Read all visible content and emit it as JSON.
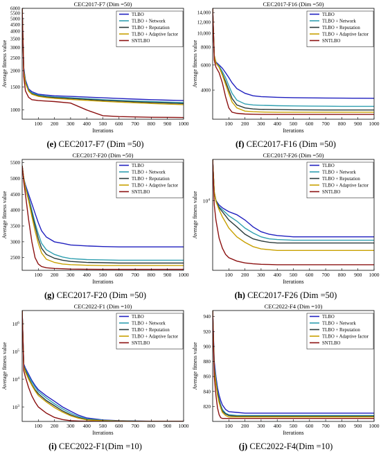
{
  "legend_entries": [
    "TLBO",
    "TLBO + Network",
    "TLBO + Reputation",
    "TLBO + Adaptive factor",
    "SNTLBO"
  ],
  "series_colors": [
    "#1f1fbf",
    "#2f9fb0",
    "#2a3a3a",
    "#c8a000",
    "#8b1010"
  ],
  "chart_data": [
    {
      "type": "line",
      "title": "CEC2017-F7 (Dim =50)",
      "caption_letter": "(e)",
      "caption_text": "CEC2017-F7 (Dim =50)",
      "xlabel": "Iterations",
      "ylabel": "Average fitness value",
      "xlim": [
        0,
        1000
      ],
      "ylim": [
        850,
        6000
      ],
      "yscale": "log",
      "xticks": [
        "100",
        "200",
        "300",
        "400",
        "500",
        "600",
        "700",
        "800",
        "900",
        "1000"
      ],
      "yticks": [
        "6000",
        "5500",
        "5000",
        "4500",
        "4000",
        "3500",
        "3000",
        "2500",
        "2000",
        "1500",
        "1000"
      ],
      "x": [
        0,
        10,
        20,
        40,
        60,
        100,
        150,
        200,
        300,
        400,
        500,
        600,
        700,
        800,
        900,
        1000
      ],
      "series": [
        {
          "name": "TLBO",
          "values": [
            6000,
            2100,
            1700,
            1450,
            1380,
            1320,
            1300,
            1285,
            1270,
            1255,
            1240,
            1225,
            1212,
            1200,
            1190,
            1180
          ]
        },
        {
          "name": "TLBO + Network",
          "values": [
            6000,
            2050,
            1650,
            1420,
            1350,
            1300,
            1275,
            1260,
            1240,
            1220,
            1200,
            1185,
            1172,
            1160,
            1150,
            1140
          ]
        },
        {
          "name": "TLBO + Reputation",
          "values": [
            6000,
            2000,
            1620,
            1400,
            1330,
            1285,
            1260,
            1245,
            1225,
            1205,
            1185,
            1170,
            1155,
            1142,
            1132,
            1120
          ]
        },
        {
          "name": "TLBO + Adaptive factor",
          "values": [
            6000,
            1980,
            1600,
            1390,
            1320,
            1270,
            1245,
            1228,
            1205,
            1185,
            1165,
            1150,
            1135,
            1122,
            1110,
            1100
          ]
        },
        {
          "name": "SNTLBO",
          "values": [
            6000,
            1800,
            1400,
            1250,
            1200,
            1180,
            1170,
            1160,
            1130,
            1000,
            905,
            890,
            885,
            880,
            878,
            875
          ]
        }
      ]
    },
    {
      "type": "line",
      "title": "CEC2017-F16 (Dim =50)",
      "caption_letter": "(f)",
      "caption_text": "CEC2017-F16 (Dim =50)",
      "xlabel": "Iterations",
      "ylabel": "Average fitness value",
      "xlim": [
        0,
        1000
      ],
      "ylim": [
        2500,
        15000
      ],
      "yscale": "log",
      "xticks": [
        "100",
        "200",
        "300",
        "400",
        "500",
        "600",
        "700",
        "800",
        "900",
        "1000"
      ],
      "yticks": [
        "14,000",
        "12,000",
        "10,000",
        "8000",
        "6000",
        "4000"
      ],
      "x": [
        0,
        10,
        20,
        40,
        60,
        80,
        100,
        120,
        150,
        200,
        250,
        300,
        400,
        500,
        600,
        700,
        800,
        900,
        1000
      ],
      "series": [
        {
          "name": "TLBO",
          "values": [
            15000,
            7000,
            6300,
            6000,
            5700,
            5300,
            4900,
            4500,
            4100,
            3800,
            3650,
            3600,
            3560,
            3540,
            3530,
            3520,
            3515,
            3510,
            3505
          ]
        },
        {
          "name": "TLBO + Network",
          "values": [
            15000,
            7000,
            6200,
            5900,
            5400,
            4900,
            4300,
            3800,
            3400,
            3200,
            3150,
            3130,
            3110,
            3100,
            3090,
            3085,
            3080,
            3080,
            3080
          ]
        },
        {
          "name": "TLBO + Reputation",
          "values": [
            15000,
            7000,
            6200,
            5800,
            5200,
            4600,
            4000,
            3500,
            3150,
            3000,
            2950,
            2930,
            2920,
            2910,
            2905,
            2900,
            2900,
            2900,
            2900
          ]
        },
        {
          "name": "TLBO + Adaptive factor",
          "values": [
            15000,
            7000,
            6200,
            5800,
            5100,
            4400,
            3800,
            3300,
            3000,
            2850,
            2820,
            2810,
            2800,
            2800,
            2800,
            2800,
            2800,
            2800,
            2800
          ]
        },
        {
          "name": "SNTLBO",
          "values": [
            15000,
            6500,
            5800,
            5300,
            4500,
            3600,
            3000,
            2800,
            2750,
            2720,
            2710,
            2700,
            2700,
            2700,
            2700,
            2700,
            2700,
            2700,
            2700
          ]
        }
      ]
    },
    {
      "type": "line",
      "title": "CEC2017-F20 (Dim =50)",
      "caption_letter": "(g)",
      "caption_text": "CEC2017-F20 (Dim =50)",
      "xlabel": "Iterations",
      "ylabel": "Average fitness value",
      "xlim": [
        0,
        1000
      ],
      "ylim": [
        2100,
        5600
      ],
      "yscale": "linear",
      "xticks": [
        "100",
        "200",
        "300",
        "400",
        "500",
        "600",
        "700",
        "800",
        "900",
        "1000"
      ],
      "yticks": [
        "5500",
        "5000",
        "4500",
        "4000",
        "3500",
        "3000",
        "2500"
      ],
      "x": [
        0,
        10,
        20,
        40,
        60,
        80,
        100,
        120,
        150,
        200,
        250,
        300,
        400,
        500,
        600,
        700,
        800,
        900,
        1000
      ],
      "series": [
        {
          "name": "TLBO",
          "values": [
            5400,
            5000,
            4800,
            4500,
            4200,
            3900,
            3600,
            3350,
            3150,
            3000,
            2950,
            2900,
            2870,
            2850,
            2840,
            2840,
            2840,
            2840,
            2840
          ]
        },
        {
          "name": "TLBO + Network",
          "values": [
            5400,
            5000,
            4750,
            4400,
            4000,
            3600,
            3250,
            2950,
            2750,
            2600,
            2520,
            2470,
            2440,
            2430,
            2420,
            2420,
            2420,
            2420,
            2420
          ]
        },
        {
          "name": "TLBO + Reputation",
          "values": [
            5400,
            5000,
            4700,
            4350,
            3900,
            3500,
            3100,
            2800,
            2600,
            2480,
            2420,
            2380,
            2350,
            2340,
            2330,
            2330,
            2330,
            2330,
            2330
          ]
        },
        {
          "name": "TLBO + Adaptive factor",
          "values": [
            5400,
            5000,
            4700,
            4300,
            3800,
            3350,
            2950,
            2650,
            2450,
            2350,
            2300,
            2280,
            2260,
            2250,
            2250,
            2250,
            2250,
            2250,
            2250
          ]
        },
        {
          "name": "SNTLBO",
          "values": [
            5400,
            4900,
            4500,
            3700,
            3000,
            2500,
            2300,
            2220,
            2180,
            2160,
            2150,
            2140,
            2135,
            2130,
            2130,
            2130,
            2130,
            2130,
            2130
          ]
        }
      ]
    },
    {
      "type": "line",
      "title": "CEC2017-F26 (Dim =50)",
      "caption_letter": "(h)",
      "caption_text": "CEC2017-F26 (Dim =50)",
      "xlabel": "Iterations",
      "ylabel": "Average fitness value",
      "xlim": [
        0,
        1000
      ],
      "ylim": [
        4500,
        16000
      ],
      "yscale": "log",
      "xticks": [
        "100",
        "200",
        "300",
        "400",
        "500",
        "600",
        "700",
        "800",
        "900",
        "1000"
      ],
      "yticks": [
        "10^4"
      ],
      "x": [
        0,
        10,
        20,
        40,
        60,
        80,
        100,
        150,
        200,
        250,
        300,
        350,
        400,
        500,
        600,
        700,
        800,
        900,
        1000
      ],
      "series": [
        {
          "name": "TLBO",
          "values": [
            16000,
            11000,
            10000,
            9500,
            9200,
            9000,
            8800,
            8500,
            8000,
            7400,
            7000,
            6800,
            6700,
            6600,
            6600,
            6600,
            6600,
            6600,
            6600
          ]
        },
        {
          "name": "TLBO + Network",
          "values": [
            16000,
            11000,
            10000,
            9300,
            9000,
            8700,
            8400,
            7900,
            7300,
            6900,
            6600,
            6450,
            6400,
            6350,
            6350,
            6350,
            6350,
            6350,
            6350
          ]
        },
        {
          "name": "TLBO + Reputation",
          "values": [
            16000,
            11000,
            10000,
            9200,
            8800,
            8400,
            8000,
            7400,
            6800,
            6450,
            6300,
            6200,
            6150,
            6150,
            6150,
            6150,
            6150,
            6150,
            6150
          ]
        },
        {
          "name": "TLBO + Adaptive factor",
          "values": [
            16000,
            11000,
            9900,
            9000,
            8300,
            7800,
            7300,
            6600,
            6200,
            5900,
            5750,
            5700,
            5650,
            5650,
            5650,
            5650,
            5650,
            5650,
            5650
          ]
        },
        {
          "name": "SNTLBO",
          "values": [
            16000,
            9500,
            8000,
            6500,
            5800,
            5400,
            5200,
            5000,
            4900,
            4850,
            4820,
            4810,
            4800,
            4800,
            4800,
            4800,
            4800,
            4800,
            4800
          ]
        }
      ]
    },
    {
      "type": "line",
      "title": "CEC2022-F1 (Dim =10)",
      "caption_letter": "(i)",
      "caption_text": "CEC2022-F1(Dim =10)",
      "xlabel": "Iterations",
      "ylabel": "Average fitness value",
      "xlim": [
        0,
        1000
      ],
      "ylim": [
        300,
        3000000
      ],
      "yscale": "log",
      "xticks": [
        "100",
        "200",
        "300",
        "400",
        "500",
        "600",
        "700",
        "800",
        "900",
        "1000"
      ],
      "yticks": [
        "10^6",
        "10^5",
        "10^4",
        "10^3"
      ],
      "x": [
        0,
        10,
        20,
        40,
        60,
        80,
        100,
        150,
        200,
        250,
        300,
        350,
        400,
        500,
        600,
        700,
        800,
        900,
        1000
      ],
      "series": [
        {
          "name": "TLBO",
          "values": [
            3000000,
            35000,
            25000,
            15000,
            9000,
            6000,
            4200,
            2500,
            1600,
            1000,
            700,
            500,
            400,
            340,
            320,
            310,
            305,
            302,
            301
          ]
        },
        {
          "name": "TLBO + Network",
          "values": [
            3000000,
            32000,
            22000,
            13000,
            8000,
            5200,
            3600,
            2100,
            1300,
            850,
            600,
            450,
            370,
            330,
            315,
            308,
            304,
            302,
            301
          ]
        },
        {
          "name": "TLBO + Reputation",
          "values": [
            3000000,
            30000,
            20000,
            11000,
            6500,
            4200,
            3000,
            1700,
            1100,
            720,
            520,
            410,
            350,
            320,
            310,
            305,
            302,
            301,
            300
          ]
        },
        {
          "name": "TLBO + Adaptive factor",
          "values": [
            3000000,
            28000,
            18000,
            10000,
            6000,
            3800,
            2600,
            1500,
            950,
            650,
            480,
            390,
            340,
            318,
            308,
            303,
            301,
            300,
            300
          ]
        },
        {
          "name": "SNTLBO",
          "values": [
            3000000,
            20000,
            12000,
            5000,
            2500,
            1500,
            1000,
            600,
            420,
            350,
            320,
            310,
            305,
            302,
            301,
            300,
            300,
            300,
            300
          ]
        }
      ]
    },
    {
      "type": "line",
      "title": "CEC2022-F4 (Dim =10)",
      "caption_letter": "(j)",
      "caption_text": "CEC2022-F4(Dim =10)",
      "xlabel": "Iterations",
      "ylabel": "Average fitness value",
      "xlim": [
        0,
        1000
      ],
      "ylim": [
        800,
        948
      ],
      "yscale": "linear",
      "xticks": [
        "100",
        "200",
        "300",
        "400",
        "500",
        "600",
        "700",
        "800",
        "900",
        "1000"
      ],
      "yticks": [
        "940",
        "920",
        "900",
        "880",
        "860",
        "840",
        "820"
      ],
      "x": [
        0,
        10,
        20,
        30,
        40,
        50,
        60,
        80,
        100,
        150,
        200,
        300,
        400,
        500,
        600,
        700,
        800,
        900,
        1000
      ],
      "series": [
        {
          "name": "TLBO",
          "values": [
            948,
            880,
            860,
            845,
            835,
            828,
            822,
            816,
            813,
            812,
            811,
            811,
            811,
            811,
            811,
            811,
            811,
            811,
            811
          ]
        },
        {
          "name": "TLBO + Network",
          "values": [
            948,
            875,
            855,
            840,
            830,
            822,
            816,
            811,
            809,
            808,
            808,
            808,
            808,
            808,
            808,
            808,
            808,
            808,
            808
          ]
        },
        {
          "name": "TLBO + Reputation",
          "values": [
            948,
            872,
            852,
            838,
            828,
            820,
            814,
            810,
            808,
            807,
            807,
            807,
            807,
            807,
            807,
            807,
            807,
            807,
            807
          ]
        },
        {
          "name": "TLBO + Adaptive factor",
          "values": [
            948,
            870,
            850,
            835,
            825,
            818,
            812,
            808,
            806,
            806,
            806,
            806,
            806,
            806,
            806,
            806,
            806,
            806,
            806
          ]
        },
        {
          "name": "SNTLBO",
          "values": [
            948,
            860,
            835,
            818,
            809,
            805,
            804,
            804,
            804,
            804,
            804,
            804,
            804,
            804,
            804,
            804,
            804,
            804,
            804
          ]
        }
      ]
    }
  ]
}
